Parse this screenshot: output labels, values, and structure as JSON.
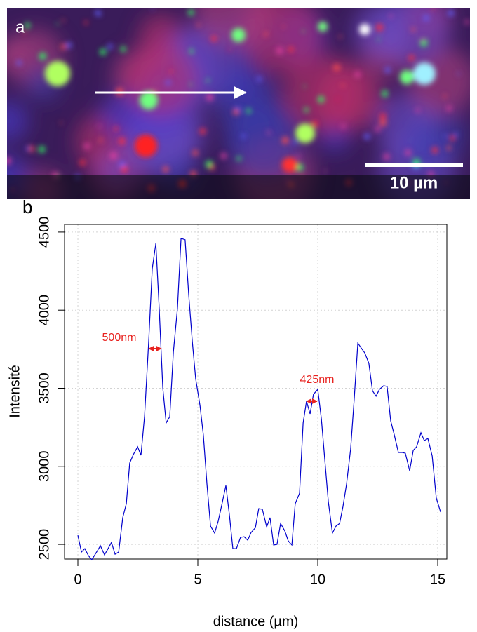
{
  "image": {
    "panel_label": "a",
    "scale_bar_label": "10 µm"
  },
  "chart_data": {
    "type": "line",
    "panel_label": "b",
    "xlabel": "distance (µm)",
    "ylabel": "Intensité",
    "annotations": [
      "500nm",
      "425nm"
    ],
    "x": [
      0,
      0.15,
      0.29,
      0.44,
      0.58,
      0.76,
      0.94,
      1.11,
      1.26,
      1.4,
      1.55,
      1.7,
      1.87,
      2.02,
      2.16,
      2.31,
      2.49,
      2.63,
      2.78,
      2.95,
      3.1,
      3.25,
      3.39,
      3.54,
      3.68,
      3.83,
      3.98,
      4.15,
      4.3,
      4.47,
      4.62,
      4.77,
      4.91,
      5.09,
      5.23,
      5.38,
      5.53,
      5.7,
      5.85,
      5.99,
      6.17,
      6.32,
      6.46,
      6.61,
      6.78,
      6.93,
      7.08,
      7.22,
      7.4,
      7.54,
      7.69,
      7.87,
      8.01,
      8.16,
      8.3,
      8.45,
      8.63,
      8.77,
      8.92,
      9.06,
      9.24,
      9.39,
      9.53,
      9.68,
      9.82,
      10.0,
      10.15,
      10.29,
      10.44,
      10.61,
      10.76,
      10.91,
      11.05,
      11.2,
      11.37,
      11.52,
      11.67,
      11.81,
      11.96,
      12.13,
      12.28,
      12.43,
      12.57,
      12.75,
      12.89,
      13.04,
      13.19,
      13.36,
      13.51,
      13.65,
      13.83,
      13.98,
      14.12,
      14.3,
      14.44,
      14.59,
      14.77,
      14.94,
      15.12
    ],
    "series": [
      {
        "color": "#0000cc",
        "values": [
          2558,
          2451,
          2473,
          2428,
          2401,
          2446,
          2491,
          2433,
          2473,
          2513,
          2437,
          2451,
          2671,
          2761,
          3021,
          3075,
          3125,
          3071,
          3322,
          3794,
          4266,
          4428,
          4010,
          3502,
          3278,
          3318,
          3731,
          4010,
          4460,
          4451,
          4099,
          3799,
          3561,
          3390,
          3201,
          2887,
          2617,
          2572,
          2649,
          2747,
          2877,
          2684,
          2473,
          2473,
          2545,
          2549,
          2527,
          2576,
          2607,
          2729,
          2725,
          2612,
          2671,
          2496,
          2500,
          2634,
          2585,
          2522,
          2496,
          2761,
          2828,
          3278,
          3417,
          3336,
          3461,
          3493,
          3304,
          3048,
          2774,
          2572,
          2617,
          2634,
          2742,
          2887,
          3111,
          3434,
          3789,
          3758,
          3726,
          3660,
          3484,
          3449,
          3493,
          3516,
          3511,
          3291,
          3201,
          3089,
          3089,
          3084,
          2972,
          3102,
          3125,
          3215,
          3165,
          3178,
          3066,
          2797,
          2707
        ]
      }
    ],
    "xlim": [
      -0.556,
      15.38
    ],
    "xticks": [
      0,
      5,
      10,
      15
    ],
    "ylim": [
      2406,
      4549
    ],
    "yticks": [
      2500,
      3000,
      3500,
      4000,
      4500
    ],
    "grid": true
  }
}
